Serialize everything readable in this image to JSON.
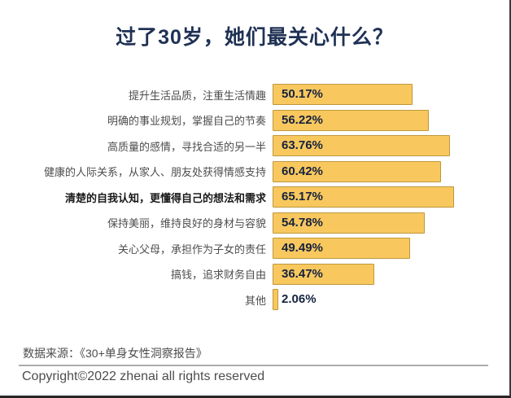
{
  "title": "过了30岁，她们最关心什么？",
  "chart_data": {
    "type": "bar",
    "orientation": "horizontal",
    "title": "过了30岁，她们最关心什么？",
    "categories": [
      "提升生活品质，注重生活情趣",
      "明确的事业规划，掌握自己的节奏",
      "高质量的感情，寻找合适的另一半",
      "健康的人际关系，从家人、朋友处获得情感支持",
      "清楚的自我认知，更懂得自己的想法和需求",
      "保持美丽，维持良好的身材与容貌",
      "关心父母，承担作为子女的责任",
      "搞钱，追求财务自由",
      "其他"
    ],
    "values": [
      50.17,
      56.22,
      63.76,
      60.42,
      65.17,
      54.78,
      49.49,
      36.47,
      2.06
    ],
    "value_labels": [
      "50.17%",
      "56.22%",
      "63.76%",
      "60.42%",
      "65.17%",
      "54.78%",
      "49.49%",
      "36.47%",
      "2.06%"
    ],
    "emphasized_category_index": 4,
    "xlabel": "",
    "ylabel": "",
    "xlim": [
      0,
      70
    ],
    "grid": false,
    "legend": "none",
    "bar_color": "#F8C85E",
    "bar_border_color": "#BE983E",
    "value_color": "#16223E",
    "title_color": "#1F3154"
  },
  "footer": {
    "source": "数据来源：《30+单身女性洞察报告》",
    "copyright": "Copyright©2022  zhenai  all rights reserved"
  }
}
